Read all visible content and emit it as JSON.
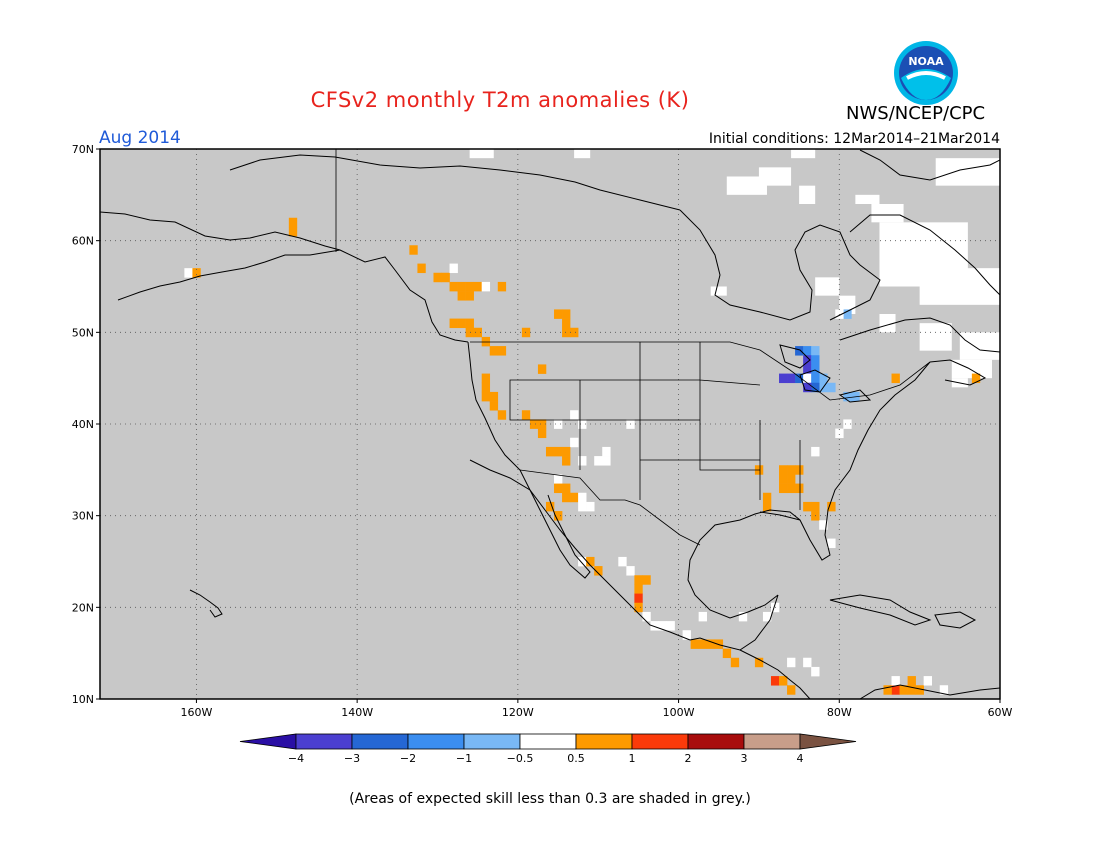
{
  "title": "CFSv2 monthly T2m anomalies (K)",
  "agency": "NWS/NCEP/CPC",
  "logo_text": "NOAA",
  "period": "Aug 2014",
  "initial_conditions": "Initial conditions: 12Mar2014–21Mar2014",
  "footnote": "(Areas of expected skill less than 0.3 are shaded in grey.)",
  "map": {
    "lon_range": [
      -172,
      -60
    ],
    "lat_range": [
      10,
      70
    ],
    "background_color": "#c8c8c8",
    "lat_ticks": [
      {
        "value": 70,
        "label": "70N"
      },
      {
        "value": 60,
        "label": "60N"
      },
      {
        "value": 50,
        "label": "50N"
      },
      {
        "value": 40,
        "label": "40N"
      },
      {
        "value": 30,
        "label": "30N"
      },
      {
        "value": 20,
        "label": "20N"
      },
      {
        "value": 10,
        "label": "10N"
      }
    ],
    "lon_ticks": [
      {
        "value": -160,
        "label": "160W"
      },
      {
        "value": -140,
        "label": "140W"
      },
      {
        "value": -120,
        "label": "120W"
      },
      {
        "value": -100,
        "label": "100W"
      },
      {
        "value": -80,
        "label": "80W"
      },
      {
        "value": -60,
        "label": "60W"
      }
    ],
    "cells": [
      {
        "lon": -161,
        "lat": 56.5,
        "cat": "w"
      },
      {
        "lon": -160,
        "lat": 56.5,
        "cat": "o"
      },
      {
        "lon": -148,
        "lat": 62,
        "cat": "o"
      },
      {
        "lon": -148,
        "lat": 61,
        "cat": "o"
      },
      {
        "lon": -133,
        "lat": 59,
        "cat": "o"
      },
      {
        "lon": -132,
        "lat": 57,
        "cat": "o"
      },
      {
        "lon": -130,
        "lat": 56,
        "cat": "o"
      },
      {
        "lon": -129,
        "lat": 56,
        "cat": "o"
      },
      {
        "lon": -128,
        "lat": 57,
        "cat": "w"
      },
      {
        "lon": -128,
        "lat": 55,
        "cat": "o"
      },
      {
        "lon": -127,
        "lat": 55,
        "cat": "o"
      },
      {
        "lon": -126,
        "lat": 55,
        "cat": "o"
      },
      {
        "lon": -125,
        "lat": 55,
        "cat": "o"
      },
      {
        "lon": -124,
        "lat": 55,
        "cat": "w"
      },
      {
        "lon": -127,
        "lat": 54,
        "cat": "o"
      },
      {
        "lon": -126,
        "lat": 54,
        "cat": "o"
      },
      {
        "lon": -122,
        "lat": 55,
        "cat": "o"
      },
      {
        "lon": -128,
        "lat": 51,
        "cat": "o"
      },
      {
        "lon": -127,
        "lat": 51,
        "cat": "o"
      },
      {
        "lon": -126,
        "lat": 51,
        "cat": "o"
      },
      {
        "lon": -126,
        "lat": 50,
        "cat": "o"
      },
      {
        "lon": -125,
        "lat": 50,
        "cat": "o"
      },
      {
        "lon": -124,
        "lat": 49,
        "cat": "o"
      },
      {
        "lon": -123,
        "lat": 48,
        "cat": "o"
      },
      {
        "lon": -122,
        "lat": 48,
        "cat": "o"
      },
      {
        "lon": -119,
        "lat": 50,
        "cat": "o"
      },
      {
        "lon": -115,
        "lat": 52,
        "cat": "o"
      },
      {
        "lon": -114,
        "lat": 52,
        "cat": "o"
      },
      {
        "lon": -114,
        "lat": 51,
        "cat": "o"
      },
      {
        "lon": -114,
        "lat": 50,
        "cat": "o"
      },
      {
        "lon": -113,
        "lat": 50,
        "cat": "o"
      },
      {
        "lon": -117,
        "lat": 46,
        "cat": "o"
      },
      {
        "lon": -124,
        "lat": 45,
        "cat": "o"
      },
      {
        "lon": -124,
        "lat": 44,
        "cat": "o"
      },
      {
        "lon": -124,
        "lat": 43,
        "cat": "o"
      },
      {
        "lon": -123,
        "lat": 43,
        "cat": "o"
      },
      {
        "lon": -123,
        "lat": 42,
        "cat": "o"
      },
      {
        "lon": -122,
        "lat": 41,
        "cat": "o"
      },
      {
        "lon": -119,
        "lat": 41,
        "cat": "o"
      },
      {
        "lon": -118,
        "lat": 40,
        "cat": "o"
      },
      {
        "lon": -117,
        "lat": 40,
        "cat": "o"
      },
      {
        "lon": -117,
        "lat": 39,
        "cat": "o"
      },
      {
        "lon": -115,
        "lat": 40,
        "cat": "w"
      },
      {
        "lon": -113,
        "lat": 41,
        "cat": "w"
      },
      {
        "lon": -112,
        "lat": 40,
        "cat": "w"
      },
      {
        "lon": -113,
        "lat": 38,
        "cat": "w"
      },
      {
        "lon": -112,
        "lat": 36,
        "cat": "w"
      },
      {
        "lon": -110,
        "lat": 36,
        "cat": "w"
      },
      {
        "lon": -109,
        "lat": 37,
        "cat": "w"
      },
      {
        "lon": -109,
        "lat": 36,
        "cat": "w"
      },
      {
        "lon": -116,
        "lat": 37,
        "cat": "o"
      },
      {
        "lon": -115,
        "lat": 37,
        "cat": "o"
      },
      {
        "lon": -114,
        "lat": 37,
        "cat": "o"
      },
      {
        "lon": -114,
        "lat": 36,
        "cat": "o"
      },
      {
        "lon": -115,
        "lat": 34,
        "cat": "w"
      },
      {
        "lon": -114,
        "lat": 33,
        "cat": "o"
      },
      {
        "lon": -115,
        "lat": 33,
        "cat": "o"
      },
      {
        "lon": -114,
        "lat": 32,
        "cat": "o"
      },
      {
        "lon": -113,
        "lat": 32,
        "cat": "o"
      },
      {
        "lon": -116,
        "lat": 31,
        "cat": "o"
      },
      {
        "lon": -115,
        "lat": 30,
        "cat": "o"
      },
      {
        "lon": -112,
        "lat": 31,
        "cat": "w"
      },
      {
        "lon": -111,
        "lat": 31,
        "cat": "w"
      },
      {
        "lon": -112,
        "lat": 32,
        "cat": "w"
      },
      {
        "lon": -106,
        "lat": 40,
        "cat": "w"
      },
      {
        "lon": -112,
        "lat": 25,
        "cat": "w"
      },
      {
        "lon": -111,
        "lat": 25,
        "cat": "o"
      },
      {
        "lon": -110,
        "lat": 24,
        "cat": "o"
      },
      {
        "lon": -107,
        "lat": 25,
        "cat": "w"
      },
      {
        "lon": -106,
        "lat": 24,
        "cat": "w"
      },
      {
        "lon": -105,
        "lat": 23,
        "cat": "o"
      },
      {
        "lon": -104,
        "lat": 23,
        "cat": "o"
      },
      {
        "lon": -105,
        "lat": 22,
        "cat": "o"
      },
      {
        "lon": -105,
        "lat": 21,
        "cat": "r"
      },
      {
        "lon": -105,
        "lat": 20,
        "cat": "o"
      },
      {
        "lon": -104,
        "lat": 19,
        "cat": "w"
      },
      {
        "lon": -103,
        "lat": 18,
        "cat": "w"
      },
      {
        "lon": -102,
        "lat": 18,
        "cat": "w"
      },
      {
        "lon": -101,
        "lat": 18,
        "cat": "w"
      },
      {
        "lon": -99,
        "lat": 17,
        "cat": "w"
      },
      {
        "lon": -98,
        "lat": 16,
        "cat": "o"
      },
      {
        "lon": -97,
        "lat": 16,
        "cat": "o"
      },
      {
        "lon": -96,
        "lat": 16,
        "cat": "o"
      },
      {
        "lon": -95,
        "lat": 16,
        "cat": "o"
      },
      {
        "lon": -94,
        "lat": 15,
        "cat": "o"
      },
      {
        "lon": -93,
        "lat": 14,
        "cat": "o"
      },
      {
        "lon": -90,
        "lat": 14,
        "cat": "o"
      },
      {
        "lon": -88,
        "lat": 12,
        "cat": "r"
      },
      {
        "lon": -87,
        "lat": 12,
        "cat": "o"
      },
      {
        "lon": -86,
        "lat": 11,
        "cat": "o"
      },
      {
        "lon": -97,
        "lat": 19,
        "cat": "w"
      },
      {
        "lon": -92,
        "lat": 19,
        "cat": "w"
      },
      {
        "lon": -89,
        "lat": 19,
        "cat": "w"
      },
      {
        "lon": -88,
        "lat": 20,
        "cat": "w"
      },
      {
        "lon": -86,
        "lat": 14,
        "cat": "w"
      },
      {
        "lon": -84,
        "lat": 14,
        "cat": "w"
      },
      {
        "lon": -83,
        "lat": 13,
        "cat": "w"
      },
      {
        "lon": -90,
        "lat": 35,
        "cat": "o"
      },
      {
        "lon": -89,
        "lat": 32,
        "cat": "o"
      },
      {
        "lon": -89,
        "lat": 31,
        "cat": "o"
      },
      {
        "lon": -87,
        "lat": 35,
        "cat": "o"
      },
      {
        "lon": -86,
        "lat": 35,
        "cat": "o"
      },
      {
        "lon": -87,
        "lat": 34,
        "cat": "o"
      },
      {
        "lon": -86,
        "lat": 34,
        "cat": "o"
      },
      {
        "lon": -87,
        "lat": 33,
        "cat": "o"
      },
      {
        "lon": -86,
        "lat": 33,
        "cat": "o"
      },
      {
        "lon": -85,
        "lat": 33,
        "cat": "o"
      },
      {
        "lon": -85,
        "lat": 35,
        "cat": "o"
      },
      {
        "lon": -84,
        "lat": 31,
        "cat": "o"
      },
      {
        "lon": -83,
        "lat": 31,
        "cat": "o"
      },
      {
        "lon": -83,
        "lat": 30,
        "cat": "o"
      },
      {
        "lon": -81,
        "lat": 31,
        "cat": "o"
      },
      {
        "lon": -82,
        "lat": 29,
        "cat": "w"
      },
      {
        "lon": -81,
        "lat": 27,
        "cat": "w"
      },
      {
        "lon": -83,
        "lat": 37,
        "cat": "w"
      },
      {
        "lon": -80,
        "lat": 39,
        "cat": "w"
      },
      {
        "lon": -79,
        "lat": 40,
        "cat": "w"
      },
      {
        "lon": -85,
        "lat": 48,
        "cat": "b3"
      },
      {
        "lon": -84,
        "lat": 48,
        "cat": "b2"
      },
      {
        "lon": -83,
        "lat": 48,
        "cat": "b1"
      },
      {
        "lon": -84,
        "lat": 47,
        "cat": "b4"
      },
      {
        "lon": -83,
        "lat": 47,
        "cat": "b2"
      },
      {
        "lon": -84,
        "lat": 46,
        "cat": "b4"
      },
      {
        "lon": -83,
        "lat": 46,
        "cat": "b2"
      },
      {
        "lon": -82,
        "lat": 45,
        "cat": "b1"
      },
      {
        "lon": -87,
        "lat": 45,
        "cat": "b4"
      },
      {
        "lon": -86,
        "lat": 45,
        "cat": "b4"
      },
      {
        "lon": -85,
        "lat": 45,
        "cat": "b3"
      },
      {
        "lon": -84,
        "lat": 45,
        "cat": "w"
      },
      {
        "lon": -83,
        "lat": 45,
        "cat": "b2"
      },
      {
        "lon": -82,
        "lat": 44,
        "cat": "b1"
      },
      {
        "lon": -83,
        "lat": 44,
        "cat": "b3"
      },
      {
        "lon": -84,
        "lat": 44,
        "cat": "b4"
      },
      {
        "lon": -81,
        "lat": 44,
        "cat": "b1"
      },
      {
        "lon": -79,
        "lat": 43,
        "cat": "b1"
      },
      {
        "lon": -78,
        "lat": 43,
        "cat": "b1"
      },
      {
        "lon": -79,
        "lat": 52,
        "cat": "b1"
      },
      {
        "lon": -80,
        "lat": 52,
        "cat": "w"
      },
      {
        "lon": -73,
        "lat": 45,
        "cat": "o"
      },
      {
        "lon": -63,
        "lat": 45,
        "cat": "o"
      },
      {
        "lon": -73,
        "lat": 11,
        "cat": "r"
      },
      {
        "lon": -72,
        "lat": 11,
        "cat": "o"
      },
      {
        "lon": -71,
        "lat": 11,
        "cat": "o"
      },
      {
        "lon": -70,
        "lat": 11,
        "cat": "o"
      },
      {
        "lon": -74,
        "lat": 11,
        "cat": "o"
      },
      {
        "lon": -71,
        "lat": 12,
        "cat": "o"
      },
      {
        "lon": -73,
        "lat": 12,
        "cat": "w"
      },
      {
        "lon": -69,
        "lat": 12,
        "cat": "w"
      },
      {
        "lon": -67,
        "lat": 11,
        "cat": "w"
      }
    ],
    "white_areas": [
      {
        "lon": [
          -126,
          -123
        ],
        "lat": [
          69,
          70
        ]
      },
      {
        "lon": [
          -113,
          -111
        ],
        "lat": [
          69,
          70
        ]
      },
      {
        "lon": [
          -86,
          -83
        ],
        "lat": [
          69,
          70
        ]
      },
      {
        "lon": [
          -90,
          -86
        ],
        "lat": [
          66,
          68
        ]
      },
      {
        "lon": [
          -94,
          -89
        ],
        "lat": [
          65,
          67
        ]
      },
      {
        "lon": [
          -85,
          -83
        ],
        "lat": [
          64,
          66
        ]
      },
      {
        "lon": [
          -78,
          -75
        ],
        "lat": [
          64,
          65
        ]
      },
      {
        "lon": [
          -76,
          -72
        ],
        "lat": [
          62,
          64
        ]
      },
      {
        "lon": [
          -68,
          -60
        ],
        "lat": [
          66,
          69
        ]
      },
      {
        "lon": [
          -75,
          -64
        ],
        "lat": [
          55,
          62
        ]
      },
      {
        "lon": [
          -70,
          -60
        ],
        "lat": [
          53,
          57
        ]
      },
      {
        "lon": [
          -83,
          -80
        ],
        "lat": [
          54,
          56
        ]
      },
      {
        "lon": [
          -80,
          -78
        ],
        "lat": [
          52,
          54
        ]
      },
      {
        "lon": [
          -75,
          -73
        ],
        "lat": [
          50,
          52
        ]
      },
      {
        "lon": [
          -70,
          -66
        ],
        "lat": [
          48,
          51
        ]
      },
      {
        "lon": [
          -65,
          -60
        ],
        "lat": [
          47,
          50
        ]
      },
      {
        "lon": [
          -66,
          -61
        ],
        "lat": [
          45,
          47
        ]
      },
      {
        "lon": [
          -66,
          -64
        ],
        "lat": [
          44,
          45
        ]
      },
      {
        "lon": [
          -96,
          -94
        ],
        "lat": [
          54,
          55
        ]
      }
    ]
  },
  "colorbar": {
    "ticks": [
      "−4",
      "−3",
      "−2",
      "−1",
      "−0.5",
      "0.5",
      "1",
      "2",
      "3",
      "4"
    ],
    "colors": {
      "lt_m4": "#2a0fa5",
      "m4_m3": "#4b3fd0",
      "m3_m2": "#2567d4",
      "m2_m1": "#3b8ef0",
      "m1_m05": "#79b8f5",
      "m05_05": "#ffffff",
      "05_1": "#fd9a00",
      "1_2": "#fb3a0a",
      "2_3": "#a80d0d",
      "3_4": "#c89e8a",
      "gt_4": "#7a5241"
    }
  }
}
